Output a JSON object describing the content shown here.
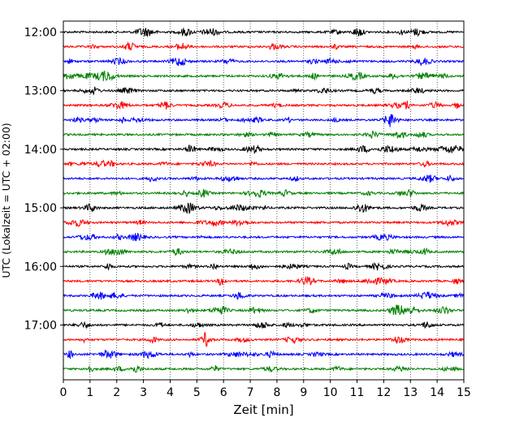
{
  "chart_data": {
    "type": "line",
    "title": "",
    "xlabel": "Zeit  [min]",
    "ylabel": "UTC (Lokalzeit = UTC + 02:00)",
    "xlim": [
      0,
      15
    ],
    "x_ticks": [
      "0",
      "1",
      "2",
      "3",
      "4",
      "5",
      "6",
      "7",
      "8",
      "9",
      "10",
      "11",
      "12",
      "13",
      "14",
      "15"
    ],
    "y_ticks": [
      "12:00",
      "13:00",
      "14:00",
      "15:00",
      "16:00",
      "17:00"
    ],
    "grid": "vertical dotted at each minute",
    "trace_interval_minutes": 15,
    "colors": [
      "#000000",
      "#ff0000",
      "#0000ff",
      "#008000"
    ],
    "traces": [
      {
        "start": "12:00",
        "color": "#000000"
      },
      {
        "start": "12:15",
        "color": "#ff0000"
      },
      {
        "start": "12:30",
        "color": "#0000ff"
      },
      {
        "start": "12:45",
        "color": "#008000"
      },
      {
        "start": "13:00",
        "color": "#000000"
      },
      {
        "start": "13:15",
        "color": "#ff0000"
      },
      {
        "start": "13:30",
        "color": "#0000ff"
      },
      {
        "start": "13:45",
        "color": "#008000"
      },
      {
        "start": "14:00",
        "color": "#000000"
      },
      {
        "start": "14:15",
        "color": "#ff0000"
      },
      {
        "start": "14:30",
        "color": "#0000ff"
      },
      {
        "start": "14:45",
        "color": "#008000"
      },
      {
        "start": "15:00",
        "color": "#000000"
      },
      {
        "start": "15:15",
        "color": "#ff0000"
      },
      {
        "start": "15:30",
        "color": "#0000ff"
      },
      {
        "start": "15:45",
        "color": "#008000"
      },
      {
        "start": "16:00",
        "color": "#000000"
      },
      {
        "start": "16:15",
        "color": "#ff0000"
      },
      {
        "start": "16:30",
        "color": "#0000ff"
      },
      {
        "start": "16:45",
        "color": "#008000"
      },
      {
        "start": "17:00",
        "color": "#000000"
      },
      {
        "start": "17:15",
        "color": "#ff0000"
      },
      {
        "start": "17:30",
        "color": "#0000ff"
      },
      {
        "start": "17:45",
        "color": "#008000"
      }
    ]
  }
}
